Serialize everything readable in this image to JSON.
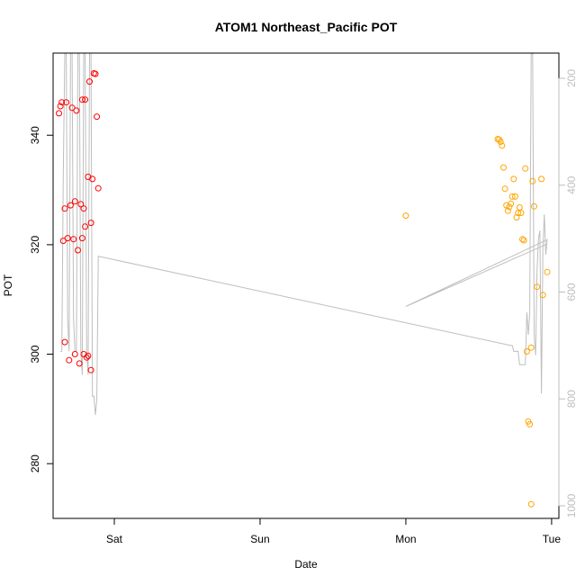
{
  "chart_data": {
    "type": "scatter",
    "title": "ATOM1 Northeast_Pacific POT",
    "xlabel": "Date",
    "ylabel": "POT",
    "ylim": [
      270,
      355
    ],
    "y_ticks": [
      280,
      300,
      320,
      340
    ],
    "x_range_days": [
      -0.42,
      3.05
    ],
    "x_ticks": [
      {
        "label": "Sat",
        "day": 0
      },
      {
        "label": "Sun",
        "day": 1
      },
      {
        "label": "Mon",
        "day": 2
      },
      {
        "label": "Tue",
        "day": 3
      }
    ],
    "secondary_y": {
      "label": "",
      "reversed": true,
      "ticks": [
        200,
        400,
        600,
        800,
        1000
      ],
      "color": "#bebebe"
    },
    "series": [
      {
        "color": "#ff0000",
        "marker": "open-circle",
        "points": [
          {
            "day": -0.38,
            "y": 344
          },
          {
            "day": -0.37,
            "y": 345.3
          },
          {
            "day": -0.36,
            "y": 346
          },
          {
            "day": -0.35,
            "y": 320.7
          },
          {
            "day": -0.34,
            "y": 302.2
          },
          {
            "day": -0.34,
            "y": 326.6
          },
          {
            "day": -0.33,
            "y": 346
          },
          {
            "day": -0.32,
            "y": 321.2
          },
          {
            "day": -0.31,
            "y": 298.9
          },
          {
            "day": -0.3,
            "y": 327.2
          },
          {
            "day": -0.29,
            "y": 345
          },
          {
            "day": -0.28,
            "y": 321
          },
          {
            "day": -0.27,
            "y": 300
          },
          {
            "day": -0.27,
            "y": 327.9
          },
          {
            "day": -0.26,
            "y": 344.5
          },
          {
            "day": -0.25,
            "y": 319
          },
          {
            "day": -0.24,
            "y": 298.3
          },
          {
            "day": -0.23,
            "y": 327.4
          },
          {
            "day": -0.22,
            "y": 346.5
          },
          {
            "day": -0.22,
            "y": 321.2
          },
          {
            "day": -0.21,
            "y": 300
          },
          {
            "day": -0.21,
            "y": 326.6
          },
          {
            "day": -0.2,
            "y": 346.5
          },
          {
            "day": -0.2,
            "y": 323.3
          },
          {
            "day": -0.19,
            "y": 299.4
          },
          {
            "day": -0.18,
            "y": 332.4
          },
          {
            "day": -0.18,
            "y": 299.7
          },
          {
            "day": -0.17,
            "y": 349.8
          },
          {
            "day": -0.16,
            "y": 324
          },
          {
            "day": -0.16,
            "y": 297.1
          },
          {
            "day": -0.15,
            "y": 332
          },
          {
            "day": -0.14,
            "y": 351.3
          },
          {
            "day": -0.13,
            "y": 351.2
          },
          {
            "day": -0.12,
            "y": 343.4
          },
          {
            "day": -0.11,
            "y": 330.3
          }
        ]
      },
      {
        "color": "#ffa500",
        "marker": "open-circle",
        "points": [
          {
            "day": 2.0,
            "y": 325.3
          },
          {
            "day": 2.63,
            "y": 339.3
          },
          {
            "day": 2.64,
            "y": 339.2
          },
          {
            "day": 2.65,
            "y": 338.8
          },
          {
            "day": 2.66,
            "y": 338.1
          },
          {
            "day": 2.67,
            "y": 334.1
          },
          {
            "day": 2.68,
            "y": 330.2
          },
          {
            "day": 2.69,
            "y": 327.2
          },
          {
            "day": 2.7,
            "y": 326.2
          },
          {
            "day": 2.71,
            "y": 326.9
          },
          {
            "day": 2.72,
            "y": 327.5
          },
          {
            "day": 2.73,
            "y": 328.8
          },
          {
            "day": 2.74,
            "y": 332
          },
          {
            "day": 2.75,
            "y": 328.8
          },
          {
            "day": 2.76,
            "y": 325
          },
          {
            "day": 2.77,
            "y": 325.8
          },
          {
            "day": 2.78,
            "y": 326.8
          },
          {
            "day": 2.79,
            "y": 325.8
          },
          {
            "day": 2.8,
            "y": 321
          },
          {
            "day": 2.81,
            "y": 320.8
          },
          {
            "day": 2.82,
            "y": 333.9
          },
          {
            "day": 2.83,
            "y": 300.5
          },
          {
            "day": 2.84,
            "y": 287.7
          },
          {
            "day": 2.85,
            "y": 287.2
          },
          {
            "day": 2.86,
            "y": 301.2
          },
          {
            "day": 2.86,
            "y": 272.6
          },
          {
            "day": 2.87,
            "y": 331.6
          },
          {
            "day": 2.88,
            "y": 327
          },
          {
            "day": 2.9,
            "y": 312.3
          },
          {
            "day": 2.93,
            "y": 332
          },
          {
            "day": 2.94,
            "y": 310.8
          },
          {
            "day": 2.97,
            "y": 315
          }
        ]
      }
    ],
    "secondary_line": {
      "color": "#bebebe",
      "points": [
        {
          "day": -0.37,
          "y2": 711
        },
        {
          "day": -0.36,
          "y2": 711
        },
        {
          "day": -0.35,
          "y2": 380
        },
        {
          "day": -0.34,
          "y2": 75
        },
        {
          "day": -0.33,
          "y2": 75
        },
        {
          "day": -0.32,
          "y2": 650
        },
        {
          "day": -0.31,
          "y2": 711
        },
        {
          "day": -0.3,
          "y2": 75
        },
        {
          "day": -0.29,
          "y2": 75
        },
        {
          "day": -0.28,
          "y2": 650
        },
        {
          "day": -0.27,
          "y2": 711
        },
        {
          "day": -0.26,
          "y2": 711
        },
        {
          "day": -0.25,
          "y2": 75
        },
        {
          "day": -0.24,
          "y2": 75
        },
        {
          "day": -0.23,
          "y2": 711
        },
        {
          "day": -0.22,
          "y2": 755
        },
        {
          "day": -0.21,
          "y2": 75
        },
        {
          "day": -0.2,
          "y2": 75
        },
        {
          "day": -0.19,
          "y2": 711
        },
        {
          "day": -0.18,
          "y2": 755
        },
        {
          "day": -0.17,
          "y2": 75
        },
        {
          "day": -0.16,
          "y2": 80
        },
        {
          "day": -0.15,
          "y2": 795
        },
        {
          "day": -0.14,
          "y2": 795
        },
        {
          "day": -0.13,
          "y2": 830
        },
        {
          "day": -0.12,
          "y2": 800
        },
        {
          "day": -0.11,
          "y2": 533
        },
        {
          "day": 2.72,
          "y2": 700
        },
        {
          "day": 2.73,
          "y2": 700
        },
        {
          "day": 2.74,
          "y2": 711
        },
        {
          "day": 2.76,
          "y2": 711
        },
        {
          "day": 2.77,
          "y2": 711
        },
        {
          "day": 2.78,
          "y2": 736
        },
        {
          "day": 2.8,
          "y2": 736
        },
        {
          "day": 2.82,
          "y2": 736
        },
        {
          "day": 2.83,
          "y2": 638
        },
        {
          "day": 2.84,
          "y2": 680
        },
        {
          "day": 2.85,
          "y2": 640
        },
        {
          "day": 2.86,
          "y2": 155
        },
        {
          "day": 2.87,
          "y2": 75
        },
        {
          "day": 2.88,
          "y2": 680
        },
        {
          "day": 2.89,
          "y2": 718
        },
        {
          "day": 2.9,
          "y2": 560
        },
        {
          "day": 2.91,
          "y2": 500
        },
        {
          "day": 2.92,
          "y2": 485
        },
        {
          "day": 2.93,
          "y2": 790
        },
        {
          "day": 2.94,
          "y2": 520
        },
        {
          "day": 2.95,
          "y2": 455
        },
        {
          "day": 2.96,
          "y2": 530
        },
        {
          "day": 2.97,
          "y2": 502
        },
        {
          "day": 2.0,
          "y2": 627
        },
        {
          "day": 2.97,
          "y2": 510
        }
      ]
    }
  }
}
